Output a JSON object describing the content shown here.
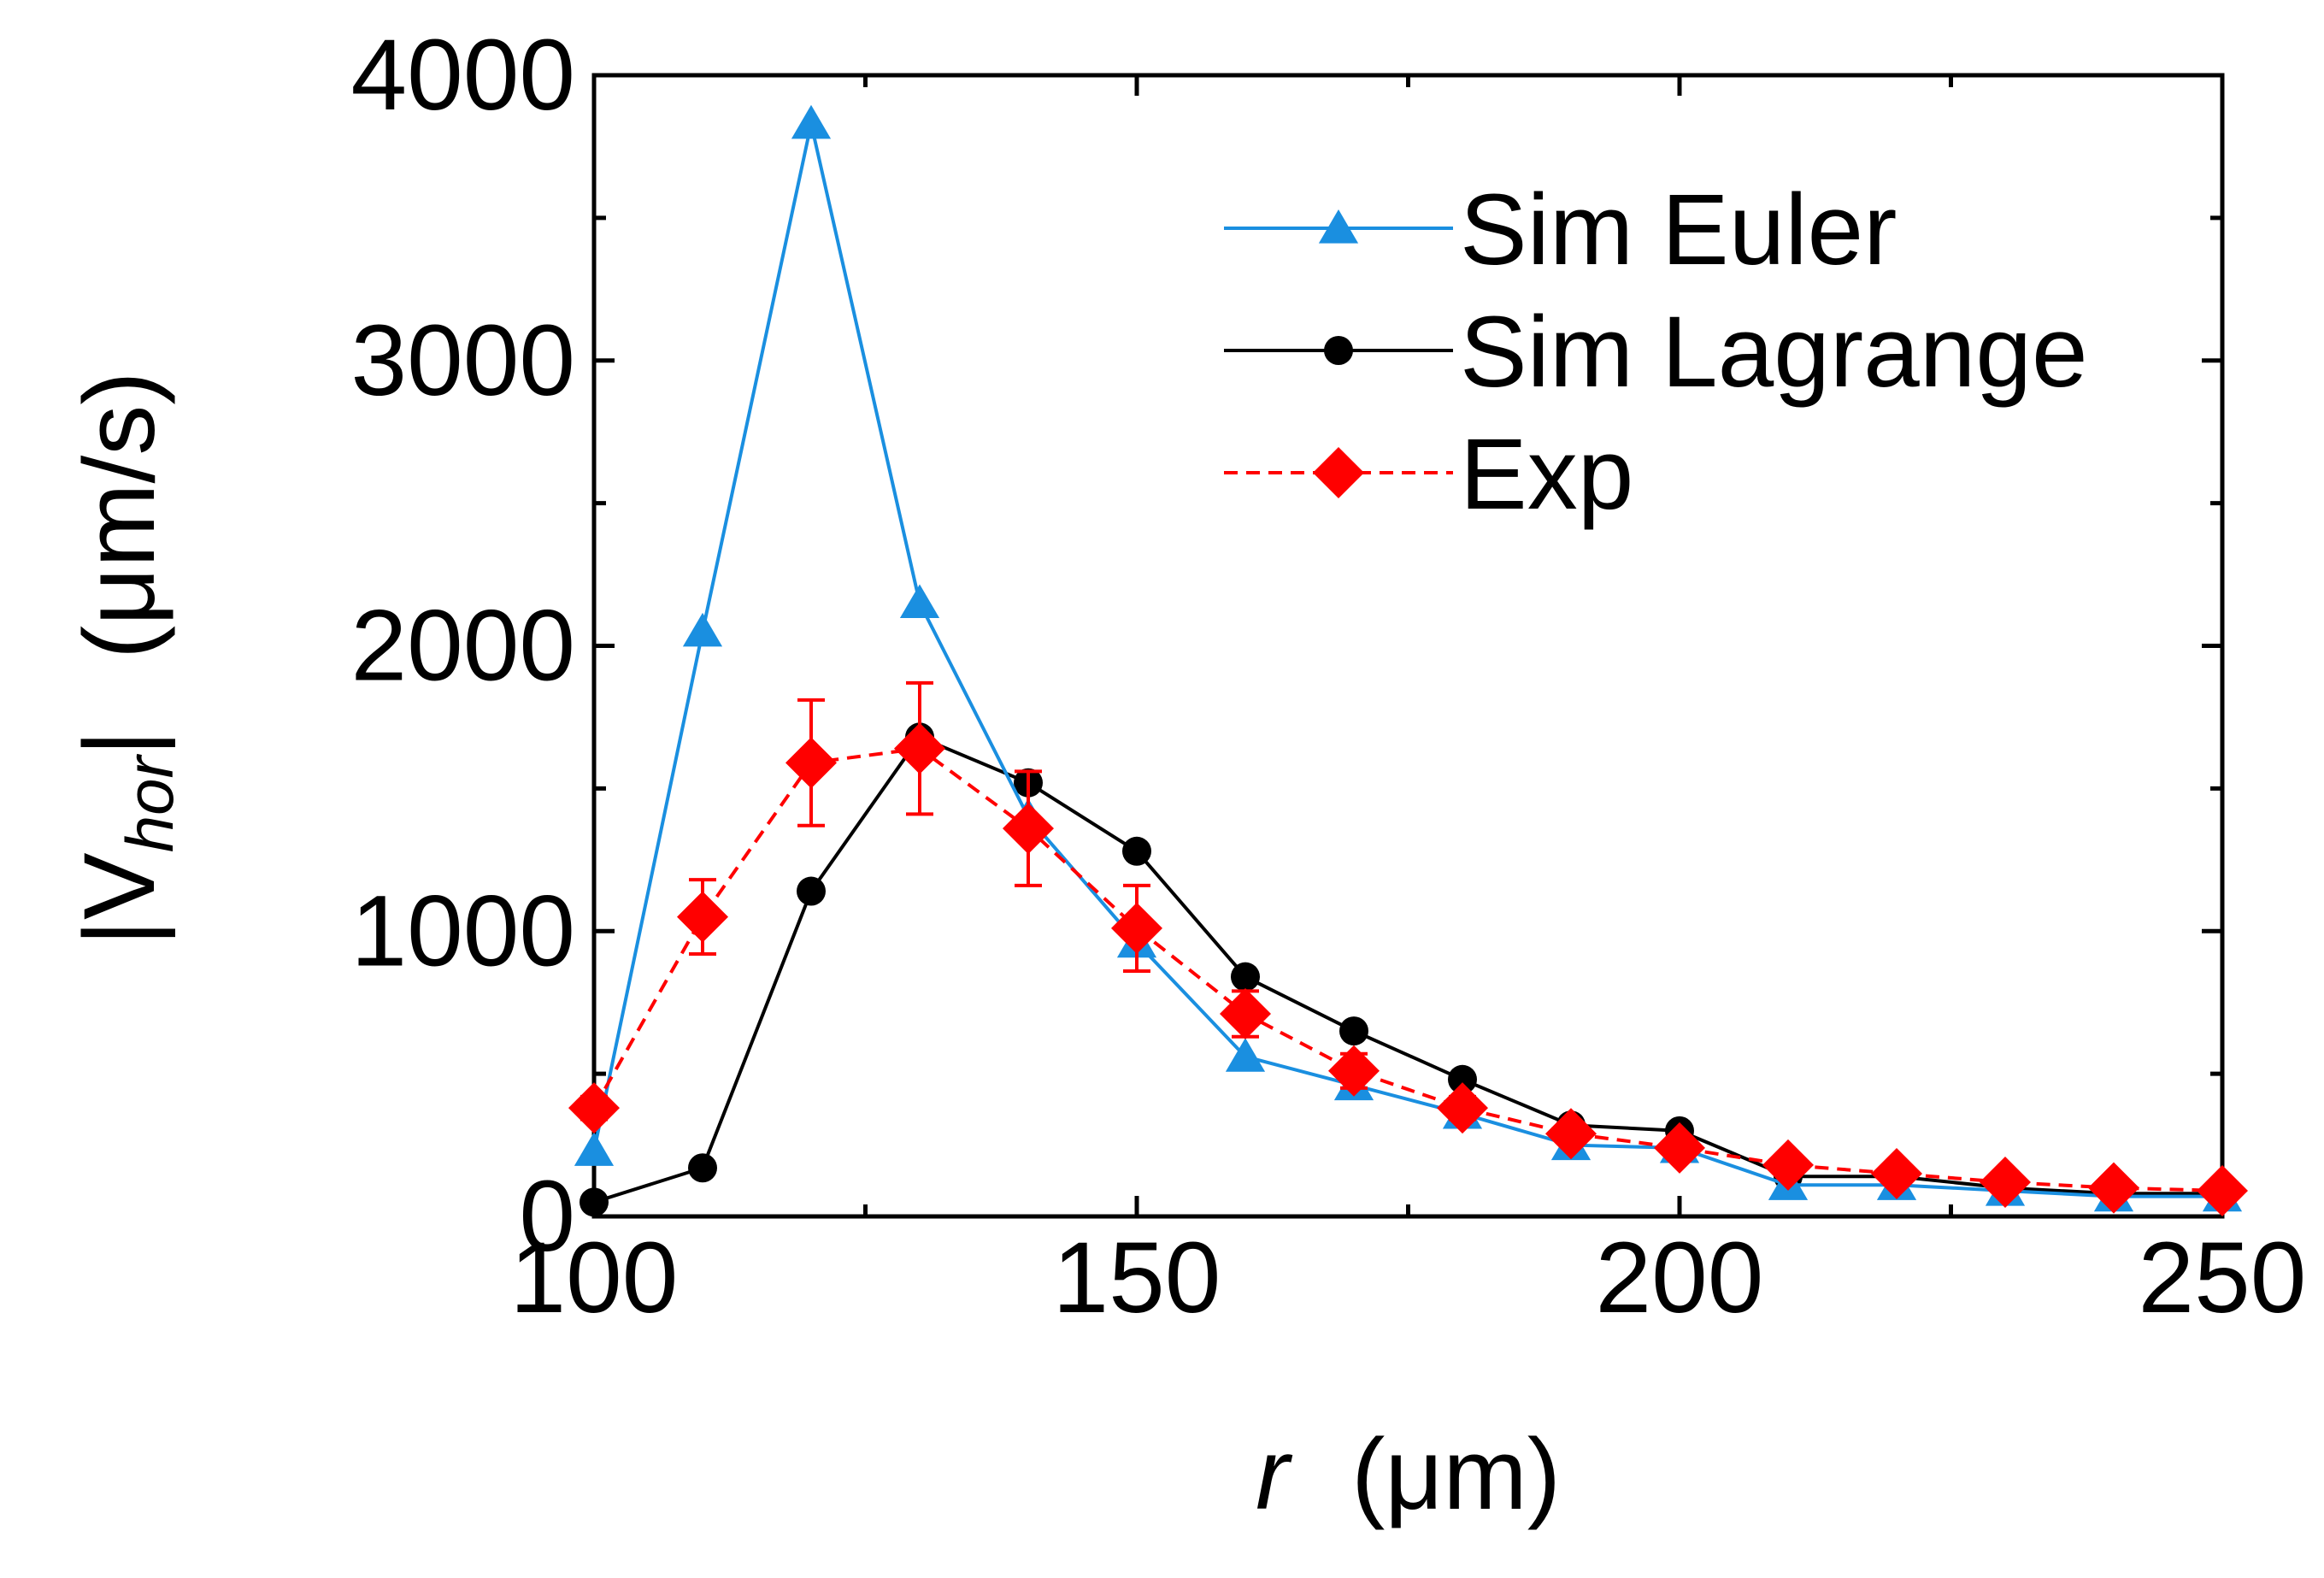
{
  "chart_data": {
    "type": "line",
    "title": "",
    "x_label": {
      "var": "r",
      "unit": "(μm)"
    },
    "y_label": {
      "pre": "|V",
      "sub": "hor",
      "post": "|",
      "unit": "(μm/s)"
    },
    "xlim": [
      100,
      250
    ],
    "ylim": [
      0,
      4000
    ],
    "x_ticks": [
      100,
      150,
      200,
      250
    ],
    "x_tick_labels": [
      "100",
      "150",
      "200",
      "250"
    ],
    "y_ticks": [
      0,
      1000,
      2000,
      3000,
      4000
    ],
    "y_tick_labels": [
      "0",
      "1000",
      "2000",
      "3000",
      "4000"
    ],
    "legend_position": "top-right",
    "series": [
      {
        "name": "Sim Euler",
        "color": "#1a8fe0",
        "marker": "triangle",
        "dash": "solid",
        "x": [
          100,
          110,
          120,
          130,
          140,
          150,
          160,
          170,
          180,
          190,
          200,
          210,
          220,
          230,
          240,
          250
        ],
        "y": [
          230,
          2050,
          3830,
          2150,
          1400,
          960,
          560,
          460,
          360,
          250,
          240,
          110,
          110,
          90,
          70,
          70
        ]
      },
      {
        "name": "Sim Lagrange",
        "color": "#000000",
        "marker": "circle",
        "dash": "solid",
        "x": [
          100,
          110,
          120,
          130,
          140,
          150,
          160,
          170,
          180,
          190,
          200,
          210,
          220,
          230,
          240,
          250
        ],
        "y": [
          50,
          170,
          1140,
          1680,
          1520,
          1280,
          840,
          650,
          480,
          320,
          300,
          140,
          140,
          100,
          80,
          80
        ]
      },
      {
        "name": "Exp",
        "color": "#ff0000",
        "marker": "diamond",
        "dash": "dashed",
        "x": [
          100,
          110,
          120,
          130,
          140,
          150,
          160,
          170,
          180,
          190,
          200,
          210,
          220,
          230,
          240,
          250
        ],
        "y": [
          380,
          1050,
          1590,
          1640,
          1360,
          1010,
          710,
          510,
          380,
          290,
          240,
          180,
          150,
          120,
          100,
          90
        ],
        "error": [
          40,
          130,
          220,
          230,
          200,
          150,
          80,
          60,
          40,
          30,
          30,
          20,
          20,
          20,
          20,
          10
        ]
      }
    ]
  }
}
